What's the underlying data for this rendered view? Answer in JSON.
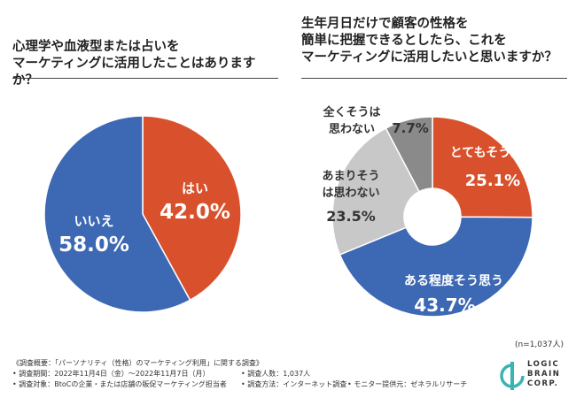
{
  "questions": {
    "q1_line1": "心理学や血液型または占いを",
    "q1_line2": "マーケティングに活用したことはありますか？",
    "q2_line1": "生年月日だけで顧客の性格を",
    "q2_line2": "簡単に把握できるとしたら、これを",
    "q2_line3": "マーケティングに活用したいと思いますか？"
  },
  "chart_data": [
    {
      "type": "pie",
      "title": "心理学や血液型または占いをマーケティングに活用したことはありますか？",
      "labels": [
        "はい",
        "いいえ"
      ],
      "values": [
        42.0,
        58.0
      ],
      "value_labels": [
        "42.0%",
        "58.0%"
      ],
      "colors": [
        "#d9512c",
        "#3c68b4"
      ]
    },
    {
      "type": "donut",
      "title": "生年月日だけで顧客の性格を簡単に把握できるとしたら、これをマーケティングに活用したいと思いますか？",
      "labels": [
        "とてもそう思う",
        "ある程度そう思う",
        "あまりそうは思わない",
        "全くそうは思わない"
      ],
      "values": [
        25.1,
        43.7,
        23.5,
        7.7
      ],
      "value_labels": [
        "25.1%",
        "43.7%",
        "23.5%",
        "7.7%"
      ],
      "colors": [
        "#d9512c",
        "#3c68b4",
        "#c8c8c8",
        "#8a8a8a"
      ]
    }
  ],
  "sample_size": "(n=1,037人)",
  "footer": {
    "summary": "《調査概要：「パーソナリティ（性格）のマーケティング利用」に関する調査》",
    "period": "• 調査期間：2022年11月4日（金）〜2022年11月7日（月）",
    "respondents": "• 調査人数：1,037人",
    "target": "• 調査対象：BtoCの企業・または店舗の販促マーケティング担当者",
    "method": "• 調査方法：インターネット調査",
    "provider": "• モニター提供元：ゼネラルリサーチ"
  },
  "logo": {
    "line1": "LOGIC",
    "line2": "BRAIN",
    "line3": "CORP."
  }
}
